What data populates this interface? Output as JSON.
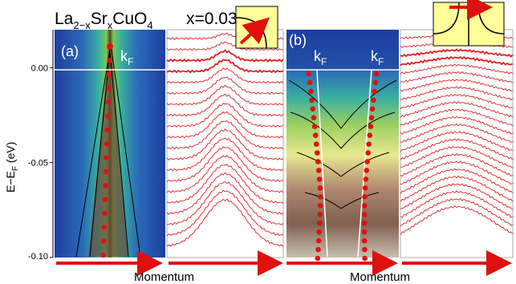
{
  "figure": {
    "title_formula": {
      "el1": "La",
      "sub1": "2−x",
      "el2": "Sr",
      "sub2": "x",
      "el3": "CuO",
      "sub3": "4"
    },
    "doping": "x=0.03",
    "panel_a_label": "(a)",
    "panel_b_label": "(b)",
    "kf_label": {
      "main": "k",
      "sub": "F"
    },
    "xlabel_left": "Momentum",
    "xlabel_right": "Momentum",
    "ylabel": {
      "main": "E−E",
      "sub": "F",
      "unit": " (eV)"
    }
  },
  "chart_data": {
    "type": "heatmap",
    "ylabel": "E−EF (eV)",
    "xlabel": "Momentum",
    "ylim": [
      -0.1,
      0.02
    ],
    "yticks": [
      "0.00",
      "-0.05",
      "-0.10"
    ],
    "ytick_values": [
      0.0,
      -0.05,
      -0.1
    ],
    "panels": [
      {
        "label": "(a)",
        "dispersion_points": 16,
        "edc_count": 20
      },
      {
        "label": "(b)",
        "dispersion_branches": 2,
        "edc_count": 24
      }
    ]
  },
  "colors": {
    "red": "#e01010",
    "inset_bg": "#ffff99",
    "edc": "#e02020"
  }
}
